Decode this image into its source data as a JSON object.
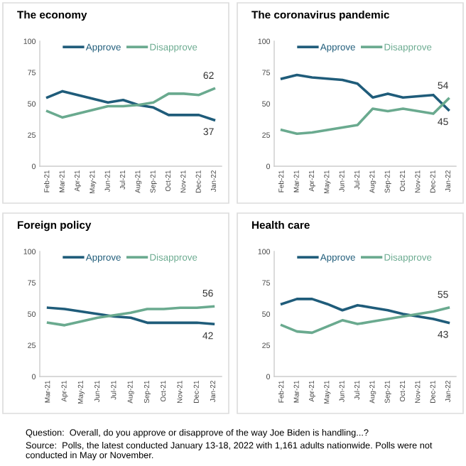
{
  "chart_data": [
    {
      "type": "line",
      "title": "The economy",
      "categories": [
        "Feb-21",
        "Mar-21",
        "Apr-21",
        "May-21",
        "Jun-21",
        "Jul-21",
        "Aug-21",
        "Sep-21",
        "Oct-21",
        "Nov-21",
        "Dec-21",
        "Jan-22"
      ],
      "ylim": [
        0,
        100
      ],
      "yticks": [
        0,
        25,
        50,
        75,
        100
      ],
      "grid": false,
      "legend": "top",
      "marker": "none",
      "line_style": "solid",
      "series": [
        {
          "name": "Approve",
          "color": "#1f5c7a",
          "values": [
            55,
            60,
            57,
            54,
            51,
            53,
            49,
            47,
            41,
            41,
            41,
            37
          ],
          "value_labels": [
            null,
            null,
            null,
            null,
            null,
            null,
            null,
            null,
            null,
            null,
            null,
            "37"
          ]
        },
        {
          "name": "Disapprove",
          "color": "#6aaa8f",
          "values": [
            44,
            39,
            42,
            45,
            48,
            48,
            49,
            51,
            58,
            58,
            57,
            62
          ],
          "value_labels": [
            null,
            null,
            null,
            null,
            null,
            null,
            null,
            null,
            null,
            null,
            null,
            "62"
          ]
        }
      ]
    },
    {
      "type": "line",
      "title": "The coronavirus pandemic",
      "categories": [
        "Feb-21",
        "Mar-21",
        "Apr-21",
        "May-21",
        "Jun-21",
        "Jul-21",
        "Aug-21",
        "Sep-21",
        "Oct-21",
        "Nov-21",
        "Dec-21",
        "Jan-22"
      ],
      "ylim": [
        0,
        100
      ],
      "yticks": [
        0,
        25,
        50,
        75,
        100
      ],
      "grid": false,
      "legend": "top",
      "marker": "none",
      "line_style": "solid",
      "series": [
        {
          "name": "Approve",
          "color": "#1f5c7a",
          "values": [
            70,
            73,
            71,
            70,
            69,
            66,
            55,
            58,
            55,
            56,
            57,
            45
          ],
          "value_labels": [
            null,
            null,
            null,
            null,
            null,
            null,
            null,
            null,
            null,
            null,
            null,
            "45"
          ]
        },
        {
          "name": "Disapprove",
          "color": "#6aaa8f",
          "values": [
            29,
            26,
            27,
            29,
            31,
            33,
            46,
            44,
            46,
            44,
            42,
            54
          ],
          "value_labels": [
            null,
            null,
            null,
            null,
            null,
            null,
            null,
            null,
            null,
            null,
            null,
            "54"
          ]
        }
      ]
    },
    {
      "type": "line",
      "title": "Foreign policy",
      "categories": [
        "Mar-21",
        "Apr-21",
        "May-21",
        "Jun-21",
        "Jul-21",
        "Aug-21",
        "Sep-21",
        "Oct-21",
        "Nov-21",
        "Dec-21",
        "Jan-22"
      ],
      "ylim": [
        0,
        100
      ],
      "yticks": [
        0,
        25,
        50,
        75,
        100
      ],
      "grid": false,
      "legend": "top",
      "marker": "none",
      "line_style": "solid",
      "series": [
        {
          "name": "Approve",
          "color": "#1f5c7a",
          "values": [
            55,
            54,
            52,
            50,
            48,
            47,
            43,
            43,
            43,
            43,
            42
          ],
          "value_labels": [
            null,
            null,
            null,
            null,
            null,
            null,
            null,
            null,
            null,
            null,
            "42"
          ]
        },
        {
          "name": "Disapprove",
          "color": "#6aaa8f",
          "values": [
            43,
            41,
            44,
            47,
            49,
            51,
            54,
            54,
            55,
            55,
            56
          ],
          "value_labels": [
            null,
            null,
            null,
            null,
            null,
            null,
            null,
            null,
            null,
            null,
            "56"
          ]
        }
      ]
    },
    {
      "type": "line",
      "title": "Health care",
      "categories": [
        "Feb-21",
        "Mar-21",
        "Apr-21",
        "May-21",
        "Jun-21",
        "Jul-21",
        "Aug-21",
        "Sep-21",
        "Oct-21",
        "Nov-21",
        "Dec-21",
        "Jan-22"
      ],
      "ylim": [
        0,
        100
      ],
      "yticks": [
        0,
        25,
        50,
        75,
        100
      ],
      "grid": false,
      "legend": "top",
      "marker": "none",
      "line_style": "solid",
      "series": [
        {
          "name": "Approve",
          "color": "#1f5c7a",
          "values": [
            58,
            62,
            62,
            58,
            53,
            57,
            55,
            53,
            50,
            48,
            46,
            43
          ],
          "value_labels": [
            null,
            null,
            null,
            null,
            null,
            null,
            null,
            null,
            null,
            null,
            null,
            "43"
          ]
        },
        {
          "name": "Disapprove",
          "color": "#6aaa8f",
          "values": [
            41,
            36,
            35,
            40,
            45,
            42,
            44,
            46,
            48,
            50,
            52,
            55
          ],
          "value_labels": [
            null,
            null,
            null,
            null,
            null,
            null,
            null,
            null,
            null,
            null,
            null,
            "55"
          ]
        }
      ],
      "annotations": [
        "Question:  Overall, do you approve or disapprove of the way Joe Biden is handling...?",
        "Source:  Polls, the latest conducted January 13-18, 2022 with 1,161 adults nationwide. Polls were not conducted in May or November."
      ]
    }
  ]
}
